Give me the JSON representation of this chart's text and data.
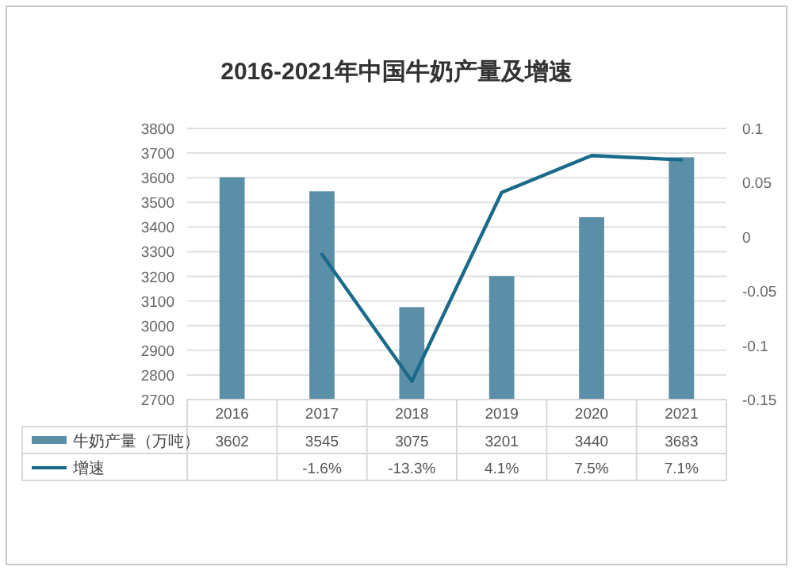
{
  "chart_data": {
    "type": "bar",
    "title": "2016-2021年中国牛奶产量及增速",
    "categories": [
      "2016",
      "2017",
      "2018",
      "2019",
      "2020",
      "2021"
    ],
    "series": [
      {
        "name": "牛奶产量（万吨）",
        "color": "#5b8fa8",
        "values": [
          3602,
          3545,
          3075,
          3201,
          3440,
          3683
        ],
        "value_labels": [
          "3602",
          "3545",
          "3075",
          "3201",
          "3440",
          "3683"
        ]
      },
      {
        "name": "增速",
        "type": "line",
        "axis": "y2",
        "color": "#1a6a8a",
        "values": [
          null,
          -0.016,
          -0.133,
          0.041,
          0.075,
          0.071
        ],
        "value_labels": [
          null,
          "-1.6%",
          "-13.3%",
          "4.1%",
          "7.5%",
          "7.1%"
        ]
      }
    ],
    "ylim": [
      2700,
      3800
    ],
    "yticks": [
      2700,
      2800,
      2900,
      3000,
      3100,
      3200,
      3300,
      3400,
      3500,
      3600,
      3700,
      3800
    ],
    "y2lim": [
      -0.15,
      0.1
    ],
    "y2ticks": [
      -0.15,
      -0.1,
      -0.05,
      0,
      0.05,
      0.1
    ],
    "grid": "y",
    "legend": "bottom",
    "marker": "none",
    "line_style": "solid"
  }
}
